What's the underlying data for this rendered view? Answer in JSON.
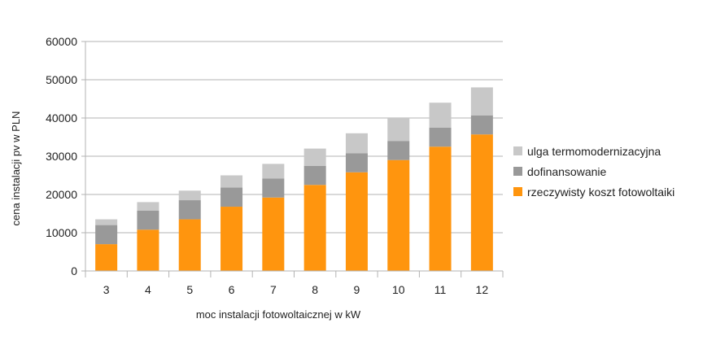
{
  "chart_data": {
    "type": "bar",
    "stacked": true,
    "categories": [
      "3",
      "4",
      "5",
      "6",
      "7",
      "8",
      "9",
      "10",
      "11",
      "12"
    ],
    "series": [
      {
        "name": "rzeczywisty koszt fotowoltaiki",
        "color": "#ff950e",
        "values": [
          7000,
          10800,
          13500,
          16800,
          19200,
          22500,
          25800,
          29000,
          32500,
          35700
        ]
      },
      {
        "name": "dofinansowanie",
        "color": "#999999",
        "values": [
          5000,
          5000,
          5000,
          5000,
          5000,
          5000,
          5000,
          5000,
          5000,
          5000
        ]
      },
      {
        "name": "ulga termomodernizacyjna",
        "color": "#c8c8c8",
        "values": [
          1500,
          2200,
          2500,
          3200,
          3800,
          4500,
          5200,
          6000,
          6500,
          7300
        ]
      }
    ],
    "xlabel": "moc instalacji fotowoltaicznej w kW",
    "ylabel": "cena instalacji pv w PLN",
    "ylim": [
      0,
      60000
    ],
    "yticks": [
      "0",
      "10000",
      "20000",
      "30000",
      "40000",
      "50000",
      "60000"
    ],
    "grid": true,
    "legend_position": "right"
  }
}
